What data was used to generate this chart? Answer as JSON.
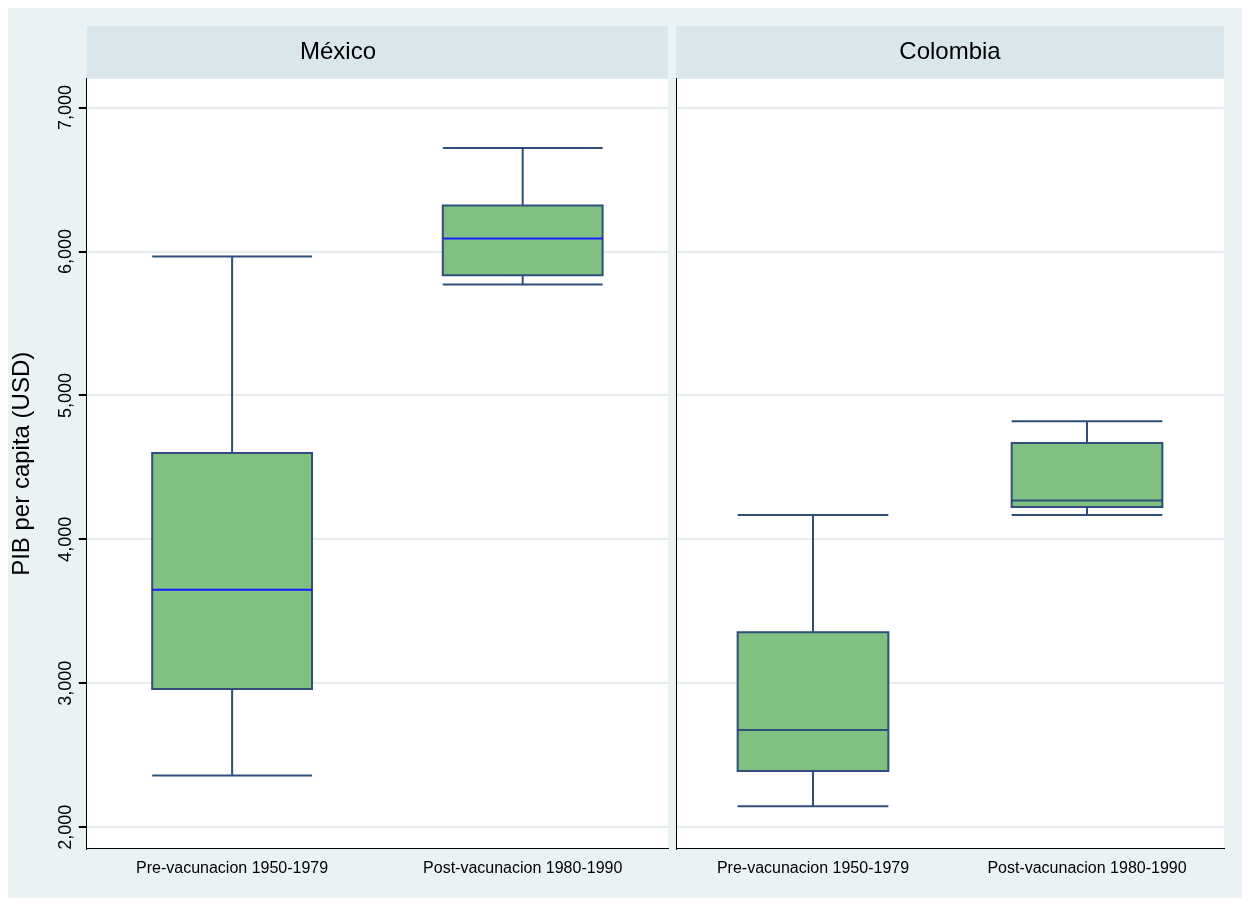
{
  "chart_data": [
    {
      "type": "box",
      "title": "México",
      "ylabel": "PIB per capita (USD)",
      "categories": [
        "Pre-vacunacion 1950-1979",
        "Post-vacunacion 1980-1990"
      ],
      "color": "#80c080",
      "ylim": [
        1850,
        7200
      ],
      "yticks": [
        {
          "value": 2000,
          "label": "2,000"
        },
        {
          "value": 3000,
          "label": "3,000"
        },
        {
          "value": 4000,
          "label": "4,000"
        },
        {
          "value": 5000,
          "label": "5,000"
        },
        {
          "value": 6000,
          "label": "6,000"
        },
        {
          "value": 7000,
          "label": "7,000"
        }
      ],
      "grid": "y",
      "boxes": [
        {
          "low": 2360,
          "q1": 2960,
          "median": 3650,
          "q3": 4600,
          "high": 5965
        },
        {
          "low": 5770,
          "q1": 5835,
          "median": 6090,
          "q3": 6320,
          "high": 6720
        }
      ]
    },
    {
      "type": "box",
      "title": "Colombia",
      "categories": [
        "Pre-vacunacion 1950-1979",
        "Post-vacunacion 1980-1990"
      ],
      "color": "#80c080",
      "ylim": [
        1850,
        7200
      ],
      "yticks": [
        {
          "value": 2000,
          "label": null
        },
        {
          "value": 3000,
          "label": null
        },
        {
          "value": 4000,
          "label": null
        },
        {
          "value": 5000,
          "label": null
        },
        {
          "value": 6000,
          "label": null
        },
        {
          "value": 7000,
          "label": null
        }
      ],
      "grid": "y",
      "tick_labels": "x",
      "boxes": [
        {
          "low": 2145,
          "q1": 2390,
          "median": 2675,
          "q3": 3355,
          "high": 4170
        },
        {
          "low": 4170,
          "q1": 4225,
          "median": 4270,
          "q3": 4670,
          "high": 4820
        }
      ]
    }
  ]
}
